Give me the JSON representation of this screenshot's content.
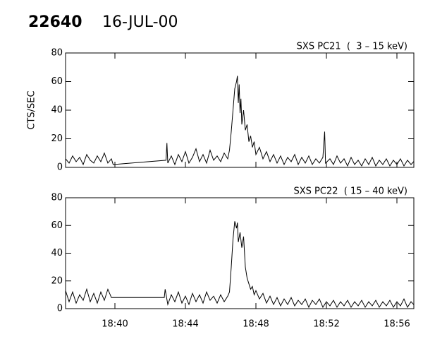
{
  "header": {
    "id": "22640",
    "date": "16-JUL-00"
  },
  "chart_data": [
    {
      "type": "line",
      "title": "SXS PC21  (  3 – 15 keV)",
      "ylabel": "CTS/SEC",
      "color": "#000000",
      "xlim": [
        37.2,
        56.96
      ],
      "ylim": [
        0,
        80
      ],
      "yticks": [
        0,
        20,
        40,
        60,
        80
      ],
      "x": [
        37.2,
        37.4,
        37.6,
        37.8,
        38.0,
        38.2,
        38.4,
        38.6,
        38.8,
        39.0,
        39.2,
        39.4,
        39.6,
        39.8,
        39.9,
        42.9,
        42.95,
        43.0,
        43.2,
        43.4,
        43.6,
        43.8,
        44.0,
        44.2,
        44.4,
        44.6,
        44.8,
        45.0,
        45.2,
        45.4,
        45.6,
        45.8,
        46.0,
        46.2,
        46.4,
        46.5,
        46.6,
        46.7,
        46.8,
        46.9,
        46.95,
        47.0,
        47.05,
        47.1,
        47.15,
        47.2,
        47.3,
        47.4,
        47.5,
        47.6,
        47.7,
        47.8,
        47.9,
        48.0,
        48.2,
        48.4,
        48.6,
        48.8,
        49.0,
        49.2,
        49.4,
        49.6,
        49.8,
        50.0,
        50.2,
        50.4,
        50.6,
        50.8,
        51.0,
        51.2,
        51.4,
        51.6,
        51.8,
        51.9,
        51.95,
        52.2,
        52.4,
        52.6,
        52.8,
        53.0,
        53.2,
        53.4,
        53.6,
        53.8,
        54.0,
        54.2,
        54.4,
        54.6,
        54.8,
        55.0,
        55.2,
        55.4,
        55.6,
        55.8,
        56.0,
        56.2,
        56.4,
        56.6,
        56.8,
        56.95
      ],
      "values": [
        6,
        3,
        8,
        4,
        7,
        2,
        9,
        5,
        3,
        8,
        4,
        10,
        3,
        6,
        2,
        5,
        17,
        3,
        8,
        2,
        9,
        4,
        11,
        3,
        7,
        13,
        4,
        9,
        3,
        12,
        5,
        8,
        4,
        10,
        6,
        12,
        25,
        40,
        55,
        60,
        64,
        45,
        58,
        38,
        48,
        30,
        40,
        26,
        30,
        18,
        22,
        14,
        18,
        9,
        14,
        6,
        11,
        4,
        9,
        3,
        8,
        2,
        7,
        4,
        9,
        2,
        7,
        3,
        8,
        2,
        6,
        3,
        7,
        25,
        3,
        6,
        2,
        8,
        3,
        6,
        1,
        7,
        2,
        5,
        1,
        6,
        2,
        7,
        1,
        5,
        2,
        6,
        1,
        5,
        2,
        6,
        1,
        5,
        2,
        4
      ]
    },
    {
      "type": "line",
      "title": "SXS PC22  ( 15 – 40 keV)",
      "color": "#000000",
      "xlim": [
        37.2,
        56.96
      ],
      "ylim": [
        0,
        80
      ],
      "yticks": [
        0,
        20,
        40,
        60,
        80
      ],
      "xticks": [
        {
          "value": 40,
          "label": "18:40"
        },
        {
          "value": 44,
          "label": "18:44"
        },
        {
          "value": 48,
          "label": "18:48"
        },
        {
          "value": 52,
          "label": "18:52"
        },
        {
          "value": 56,
          "label": "18:56"
        }
      ],
      "x": [
        37.2,
        37.4,
        37.6,
        37.8,
        38.0,
        38.2,
        38.4,
        38.6,
        38.8,
        39.0,
        39.2,
        39.4,
        39.6,
        39.8,
        39.9,
        42.8,
        42.85,
        43.0,
        43.2,
        43.4,
        43.6,
        43.8,
        44.0,
        44.2,
        44.4,
        44.6,
        44.8,
        45.0,
        45.2,
        45.4,
        45.6,
        45.8,
        46.0,
        46.2,
        46.4,
        46.5,
        46.6,
        46.7,
        46.8,
        46.9,
        46.95,
        47.0,
        47.1,
        47.2,
        47.3,
        47.4,
        47.5,
        47.6,
        47.7,
        47.8,
        47.9,
        48.0,
        48.2,
        48.4,
        48.6,
        48.8,
        49.0,
        49.2,
        49.4,
        49.6,
        49.8,
        50.0,
        50.2,
        50.4,
        50.6,
        50.8,
        51.0,
        51.2,
        51.4,
        51.6,
        51.8,
        52.0,
        52.2,
        52.4,
        52.6,
        52.8,
        53.0,
        53.2,
        53.4,
        53.6,
        53.8,
        54.0,
        54.2,
        54.4,
        54.6,
        54.8,
        55.0,
        55.2,
        55.4,
        55.6,
        55.8,
        56.0,
        56.2,
        56.4,
        56.6,
        56.8,
        56.95
      ],
      "values": [
        13,
        5,
        12,
        4,
        10,
        6,
        14,
        5,
        11,
        4,
        12,
        6,
        14,
        8,
        8,
        8,
        14,
        3,
        10,
        5,
        12,
        4,
        9,
        3,
        11,
        5,
        10,
        4,
        12,
        6,
        9,
        4,
        10,
        5,
        9,
        12,
        30,
        50,
        63,
        58,
        62,
        48,
        55,
        44,
        52,
        30,
        22,
        18,
        14,
        16,
        10,
        13,
        7,
        11,
        4,
        9,
        3,
        8,
        2,
        7,
        3,
        8,
        2,
        6,
        3,
        7,
        1,
        6,
        3,
        7,
        1,
        5,
        2,
        6,
        1,
        5,
        2,
        6,
        1,
        5,
        2,
        6,
        1,
        5,
        2,
        6,
        1,
        5,
        2,
        6,
        1,
        5,
        2,
        7,
        1,
        5,
        3
      ]
    }
  ]
}
